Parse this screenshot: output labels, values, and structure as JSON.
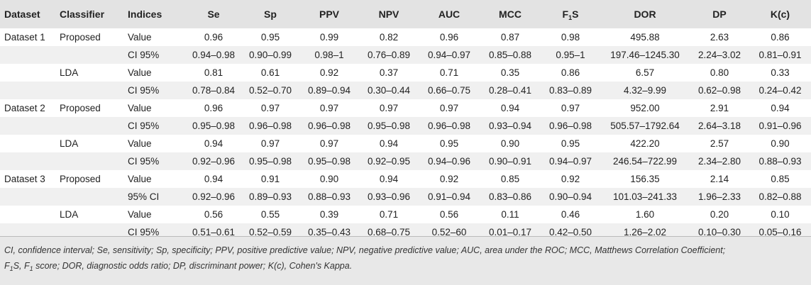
{
  "header": {
    "dataset": "Dataset",
    "classifier": "Classifier",
    "indices": "Indices",
    "se": "Se",
    "sp": "Sp",
    "ppv": "PPV",
    "npv": "NPV",
    "auc": "AUC",
    "mcc": "MCC",
    "f1s_pre": "F",
    "f1s_sub": "1",
    "f1s_post": "S",
    "dor": "DOR",
    "dp": "DP",
    "kc": "K(c)"
  },
  "rows": [
    {
      "dataset": "Dataset 1",
      "classifier": "Proposed",
      "index": "Value",
      "vals": [
        "0.96",
        "0.95",
        "0.99",
        "0.82",
        "0.96",
        "0.87",
        "0.98",
        "495.88",
        "2.63",
        "0.86"
      ]
    },
    {
      "dataset": "",
      "classifier": "",
      "index": "CI 95%",
      "vals": [
        "0.94–0.98",
        "0.90–0.99",
        "0.98–1",
        "0.76–0.89",
        "0.94–0.97",
        "0.85–0.88",
        "0.95–1",
        "197.46–1245.30",
        "2.24–3.02",
        "0.81–0.91"
      ]
    },
    {
      "dataset": "",
      "classifier": "LDA",
      "index": "Value",
      "vals": [
        "0.81",
        "0.61",
        "0.92",
        "0.37",
        "0.71",
        "0.35",
        "0.86",
        "6.57",
        "0.80",
        "0.33"
      ]
    },
    {
      "dataset": "",
      "classifier": "",
      "index": "CI 95%",
      "vals": [
        "0.78–0.84",
        "0.52–0.70",
        "0.89–0.94",
        "0.30–0.44",
        "0.66–0.75",
        "0.28–0.41",
        "0.83–0.89",
        "4.32–9.99",
        "0.62–0.98",
        "0.24–0.42"
      ]
    },
    {
      "dataset": "Dataset 2",
      "classifier": "Proposed",
      "index": "Value",
      "vals": [
        "0.96",
        "0.97",
        "0.97",
        "0.97",
        "0.97",
        "0.94",
        "0.97",
        "952.00",
        "2.91",
        "0.94"
      ]
    },
    {
      "dataset": "",
      "classifier": "",
      "index": "CI 95%",
      "vals": [
        "0.95–0.98",
        "0.96–0.98",
        "0.96–0.98",
        "0.95–0.98",
        "0.96–0.98",
        "0.93–0.94",
        "0.96–0.98",
        "505.57–1792.64",
        "2.64–3.18",
        "0.91–0.96"
      ]
    },
    {
      "dataset": "",
      "classifier": "LDA",
      "index": "Value",
      "vals": [
        "0.94",
        "0.97",
        "0.97",
        "0.94",
        "0.95",
        "0.90",
        "0.95",
        "422.20",
        "2.57",
        "0.90"
      ]
    },
    {
      "dataset": "",
      "classifier": "",
      "index": "CI 95%",
      "vals": [
        "0.92–0.96",
        "0.95–0.98",
        "0.95–0.98",
        "0.92–0.95",
        "0.94–0.96",
        "0.90–0.91",
        "0.94–0.97",
        "246.54–722.99",
        "2.34–2.80",
        "0.88–0.93"
      ]
    },
    {
      "dataset": "Dataset 3",
      "classifier": "Proposed",
      "index": "Value",
      "vals": [
        "0.94",
        "0.91",
        "0.90",
        "0.94",
        "0.92",
        "0.85",
        "0.92",
        "156.35",
        "2.14",
        "0.85"
      ]
    },
    {
      "dataset": "",
      "classifier": "",
      "index": "95% CI",
      "vals": [
        "0.92–0.96",
        "0.89–0.93",
        "0.88–0.93",
        "0.93–0.96",
        "0.91–0.94",
        "0.83–0.86",
        "0.90–0.94",
        "101.03–241.33",
        "1.96–2.33",
        "0.82–0.88"
      ]
    },
    {
      "dataset": "",
      "classifier": "LDA",
      "index": "Value",
      "vals": [
        "0.56",
        "0.55",
        "0.39",
        "0.71",
        "0.56",
        "0.11",
        "0.46",
        "1.60",
        "0.20",
        "0.10"
      ]
    },
    {
      "dataset": "",
      "classifier": "",
      "index": "CI 95%",
      "vals": [
        "0.51–0.61",
        "0.52–0.59",
        "0.35–0.43",
        "0.68–0.75",
        "0.52–60",
        "0.01–0.17",
        "0.42–0.50",
        "1.26–2.02",
        "0.10–0.30",
        "0.05–0.16"
      ]
    }
  ],
  "footnote": {
    "line1": "CI, confidence interval; Se, sensitivity; Sp, specificity; PPV, positive predictive value; NPV, negative predictive value; AUC, area under the ROC; MCC, Matthews Correlation Coefficient;",
    "l2_a": "F",
    "l2_sub1": "1",
    "l2_b": "S, F",
    "l2_sub2": "1",
    "l2_c": " score; DOR, diagnostic odds ratio; DP, discriminant power; K(c), Cohen's Kappa."
  }
}
